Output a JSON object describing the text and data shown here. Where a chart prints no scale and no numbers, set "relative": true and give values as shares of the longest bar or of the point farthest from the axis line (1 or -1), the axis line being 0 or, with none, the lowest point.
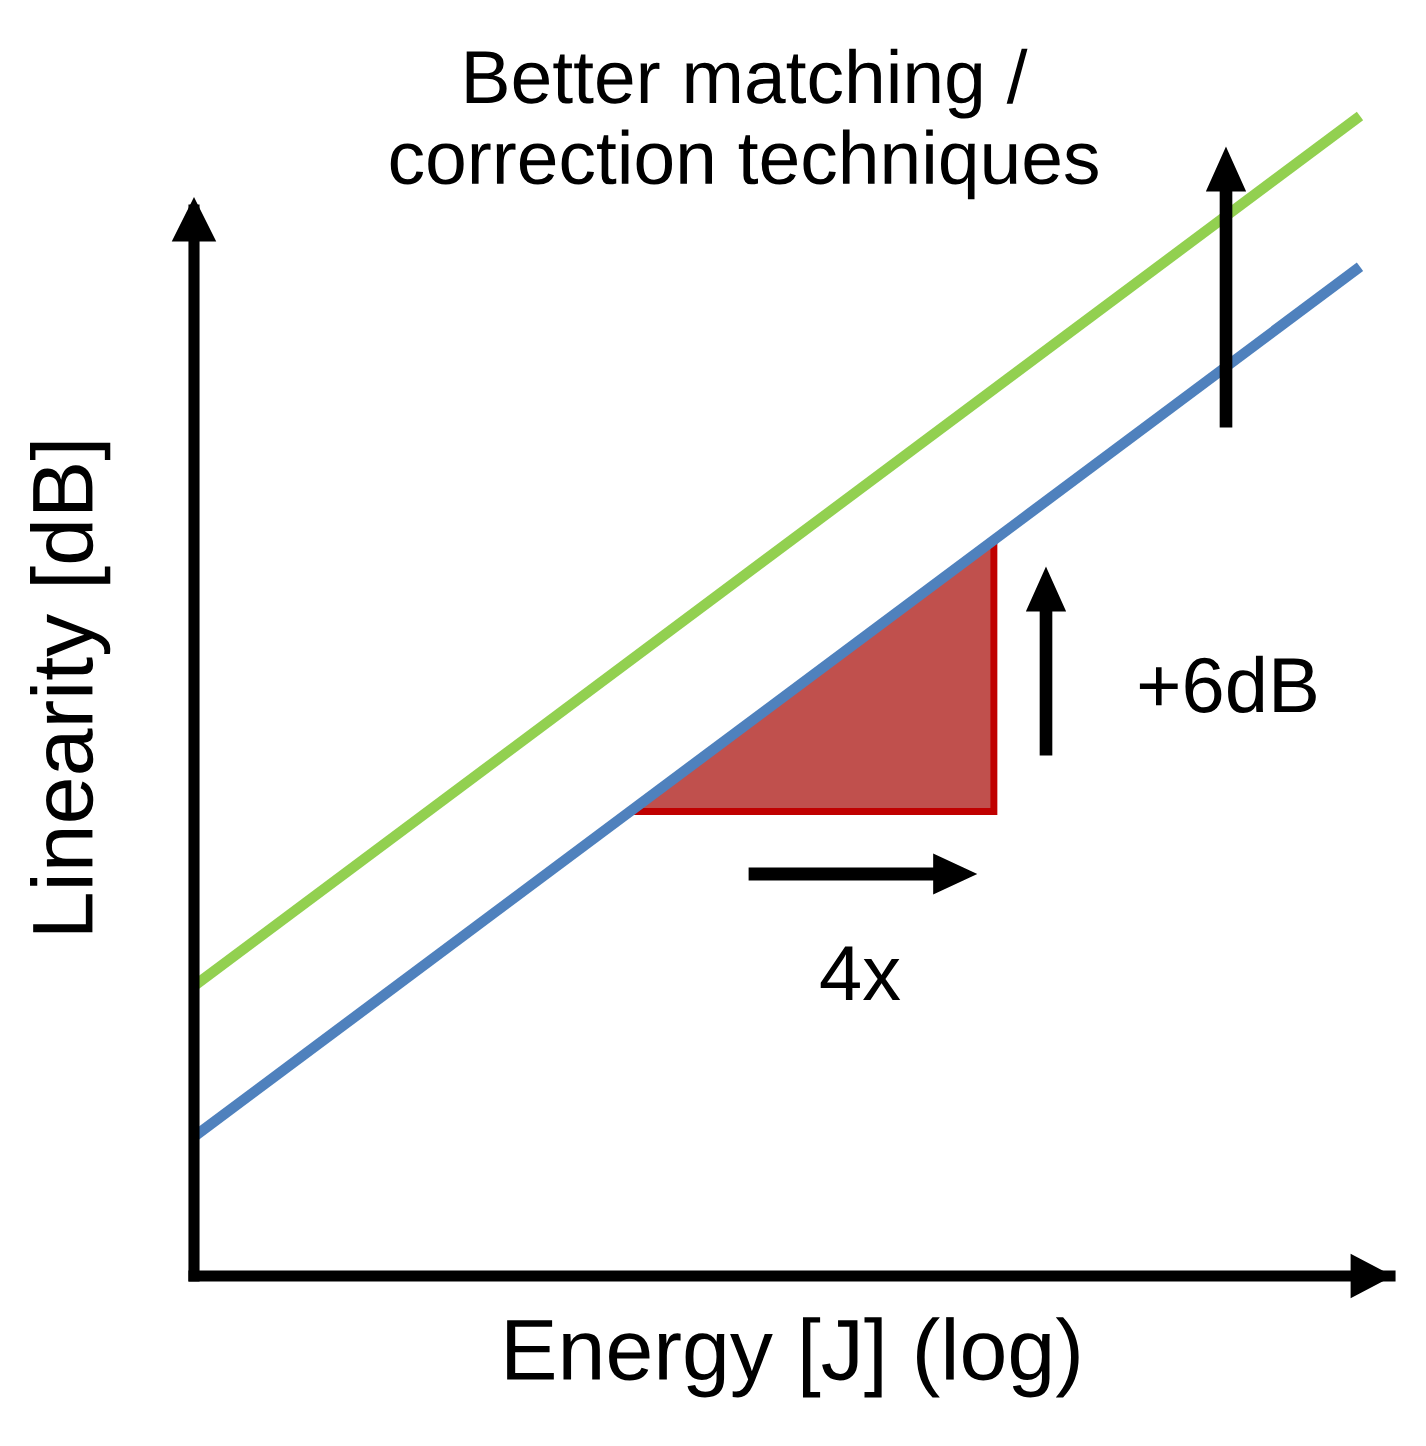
{
  "chart_data": {
    "type": "line",
    "xlabel": "Energy [J] (log)",
    "ylabel": "Linearity [dB]",
    "relative": true,
    "categories": [
      null,
      null
    ],
    "series": [
      {
        "color": "#92d050",
        "values": [
          0.25,
          1.0
        ]
      },
      {
        "color": "#4f81bd",
        "values": [
          0.12,
          0.87
        ]
      }
    ],
    "annotations": [
      "Better matching /\ncorrection techniques",
      "+6dB",
      "4x"
    ]
  }
}
